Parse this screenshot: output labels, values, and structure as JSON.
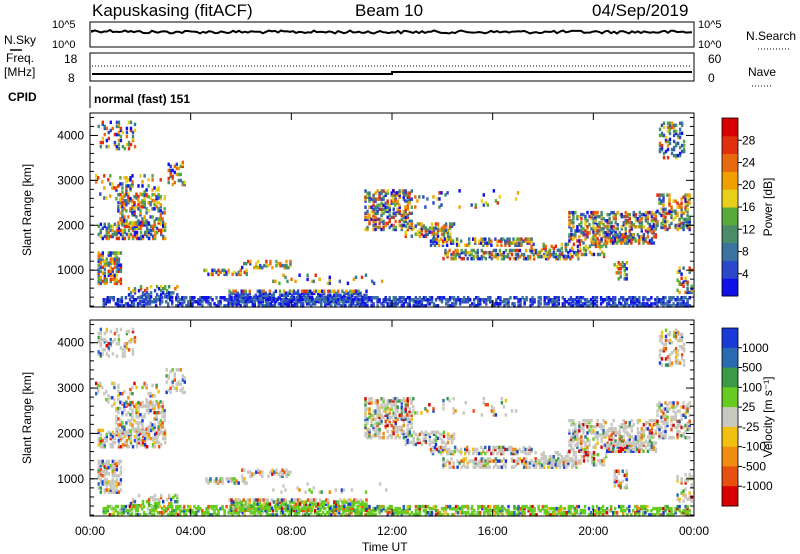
{
  "header": {
    "station": "Kapuskasing (fitACF)",
    "beam": "Beam 10",
    "date": "04/Sep/2019"
  },
  "top_panels": {
    "nsky_label": "N.Sky",
    "nsearch_label": "N.Search",
    "noise_ticks": [
      "10^5",
      "10^0"
    ],
    "freq_label": "Freq.",
    "freq_unit": "[MHz]",
    "freq_ticks": [
      "18",
      "8"
    ],
    "nave_label": "Nave",
    "nave_ticks": [
      "60",
      "0"
    ],
    "cpid_label": "CPID",
    "cpid_value": "normal (fast) 151"
  },
  "colors": {
    "power_scale": [
      "#1010e8",
      "#2c48c8",
      "#3a72a0",
      "#4a8c6a",
      "#5aaa3a",
      "#e8d01a",
      "#f0a000",
      "#e86a10",
      "#e03010",
      "#d80000"
    ],
    "velocity_scale": [
      "#1a3ad8",
      "#2a6ab0",
      "#3a9a48",
      "#66cc22",
      "#c8c8c0",
      "#f0c010",
      "#f08c10",
      "#e85010",
      "#d80000"
    ]
  },
  "chart_data": [
    {
      "type": "heatmap",
      "name": "power-panel",
      "ylabel": "Slant Range [km]",
      "ylim": [
        180,
        4500
      ],
      "yticks": [
        1000,
        2000,
        3000,
        4000
      ],
      "xlim": [
        0,
        24
      ],
      "xticks": [
        "00:00",
        "04:00",
        "08:00",
        "12:00",
        "16:00",
        "20:00",
        "00:00"
      ],
      "colorbar": {
        "label": "Power [dB]",
        "ticks": [
          "4",
          "8",
          "12",
          "16",
          "20",
          "24",
          "28"
        ]
      }
    },
    {
      "type": "heatmap",
      "name": "velocity-panel",
      "ylabel": "Slant Range [km]",
      "ylim": [
        180,
        4500
      ],
      "yticks": [
        1000,
        2000,
        3000,
        4000
      ],
      "xlim": [
        0,
        24
      ],
      "xticks": [
        "00:00",
        "04:00",
        "08:00",
        "12:00",
        "16:00",
        "20:00",
        "00:00"
      ],
      "xlabel": "Time UT",
      "colorbar": {
        "label": "Velocity [m s⁻¹]",
        "ticks": [
          "1000",
          "500",
          "100",
          "25",
          "-25",
          "-100",
          "-500",
          "-1000"
        ]
      }
    }
  ]
}
